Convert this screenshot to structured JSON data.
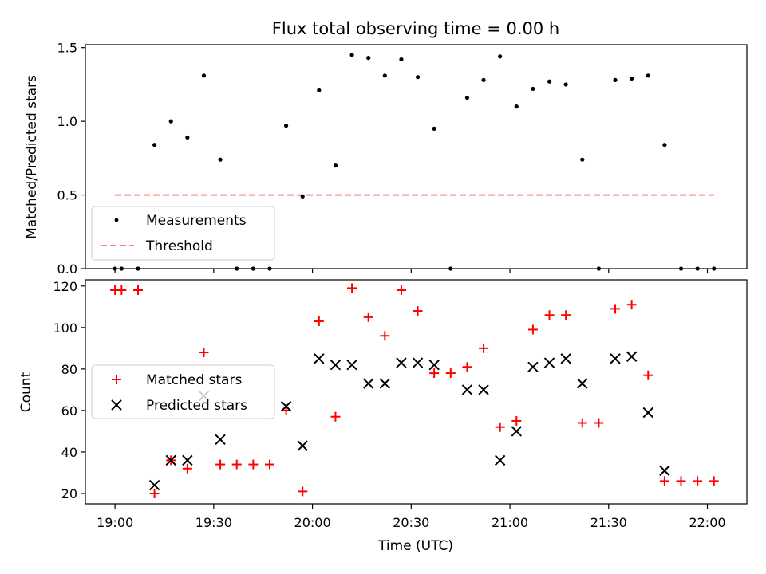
{
  "chart_data": [
    {
      "type": "scatter",
      "title": "Flux total observing time = 0.00 h",
      "ylabel": "Matched/Predicted stars",
      "ylim": [
        0,
        1.52
      ],
      "yticks": [
        0.0,
        0.5,
        1.0,
        1.5
      ],
      "ytick_labels": [
        "0.0",
        "0.5",
        "1.0",
        "1.5"
      ],
      "grid": false,
      "legend_position": "lower-left",
      "series": [
        {
          "name": "Measurements",
          "kind": "points",
          "color": "#000000",
          "x": [
            "19:00",
            "19:02",
            "19:07",
            "19:12",
            "19:17",
            "19:22",
            "19:27",
            "19:32",
            "19:37",
            "19:42",
            "19:47",
            "19:52",
            "19:57",
            "20:02",
            "20:07",
            "20:12",
            "20:17",
            "20:22",
            "20:27",
            "20:32",
            "20:37",
            "20:42",
            "20:47",
            "20:52",
            "20:57",
            "21:02",
            "21:07",
            "21:12",
            "21:17",
            "21:22",
            "21:27",
            "21:32",
            "21:37",
            "21:42",
            "21:47",
            "21:52",
            "21:57",
            "22:02"
          ],
          "y": [
            0,
            0,
            0,
            0.84,
            1.0,
            0.89,
            1.31,
            0.74,
            0,
            0,
            0,
            0.97,
            0.49,
            1.21,
            0.7,
            1.45,
            1.43,
            1.31,
            1.42,
            1.3,
            0.95,
            0,
            1.16,
            1.28,
            1.44,
            1.1,
            1.22,
            1.27,
            1.25,
            0.74,
            0,
            1.28,
            1.29,
            1.31,
            0.84,
            0,
            0,
            0
          ]
        },
        {
          "name": "Threshold",
          "kind": "dashed-line",
          "color": "#ff8080",
          "x": [
            "19:00",
            "22:02"
          ],
          "y": [
            0.5,
            0.5
          ]
        }
      ]
    },
    {
      "type": "scatter",
      "xlabel": "Time (UTC)",
      "ylabel": "Count",
      "ylim": [
        15,
        123
      ],
      "yticks": [
        20,
        40,
        60,
        80,
        100,
        120
      ],
      "ytick_labels": [
        "20",
        "40",
        "60",
        "80",
        "100",
        "120"
      ],
      "xlim": [
        "18:51",
        "22:12"
      ],
      "xticks": [
        "19:00",
        "19:30",
        "20:00",
        "20:30",
        "21:00",
        "21:30",
        "22:00"
      ],
      "xtick_labels": [
        "19:00",
        "19:30",
        "20:00",
        "20:30",
        "21:00",
        "21:30",
        "22:00"
      ],
      "grid": false,
      "legend_position": "center-left",
      "series": [
        {
          "name": "Matched stars",
          "marker": "plus",
          "color": "#ff0000",
          "x": [
            "19:00",
            "19:02",
            "19:07",
            "19:12",
            "19:17",
            "19:22",
            "19:27",
            "19:32",
            "19:37",
            "19:42",
            "19:47",
            "19:52",
            "19:57",
            "20:02",
            "20:07",
            "20:12",
            "20:17",
            "20:22",
            "20:27",
            "20:32",
            "20:37",
            "20:42",
            "20:47",
            "20:52",
            "20:57",
            "21:02",
            "21:07",
            "21:12",
            "21:17",
            "21:22",
            "21:27",
            "21:32",
            "21:37",
            "21:42",
            "21:47",
            "21:52",
            "21:57",
            "22:02"
          ],
          "y": [
            118,
            118,
            118,
            20,
            36,
            32,
            88,
            34,
            34,
            34,
            34,
            60,
            21,
            103,
            57,
            119,
            105,
            96,
            118,
            108,
            78,
            78,
            81,
            90,
            52,
            55,
            99,
            106,
            106,
            54,
            54,
            109,
            111,
            77,
            26,
            26,
            26,
            26
          ]
        },
        {
          "name": "Predicted stars",
          "marker": "x",
          "color": "#000000",
          "x": [
            "19:12",
            "19:17",
            "19:22",
            "19:27",
            "19:32",
            "19:52",
            "19:57",
            "20:02",
            "20:07",
            "20:12",
            "20:17",
            "20:22",
            "20:27",
            "20:32",
            "20:37",
            "20:47",
            "20:52",
            "20:57",
            "21:02",
            "21:07",
            "21:12",
            "21:17",
            "21:22",
            "21:32",
            "21:37",
            "21:42",
            "21:47"
          ],
          "y": [
            24,
            36,
            36,
            67,
            46,
            62,
            43,
            85,
            82,
            82,
            73,
            73,
            83,
            83,
            82,
            70,
            70,
            36,
            50,
            81,
            83,
            85,
            73,
            85,
            86,
            59,
            31
          ]
        }
      ]
    }
  ]
}
